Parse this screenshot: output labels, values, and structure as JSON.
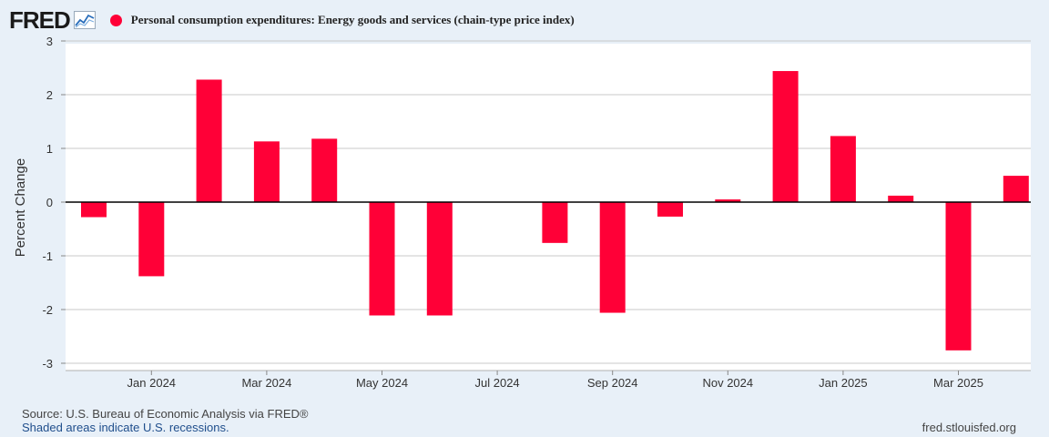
{
  "header": {
    "logo_text": "FRED",
    "logo_icon": "trend-line-icon",
    "legend_label": "Personal consumption expenditures: Energy goods and services (chain-type price index)"
  },
  "footer": {
    "source": "Source: U.S. Bureau of Economic Analysis via FRED®",
    "recession_note": "Shaded areas indicate U.S. recessions.",
    "site": "fred.stlouisfed.org"
  },
  "colors": {
    "series": "#ff0037",
    "plot_bg": "#ffffff",
    "page_bg": "#e8f0f8",
    "grid": "#c8c8c8"
  },
  "chart_data": {
    "type": "bar",
    "ylabel": "Percent Change",
    "ylim": [
      -3,
      3
    ],
    "yticks": [
      3,
      2,
      1,
      0,
      -1,
      -2,
      -3
    ],
    "grid": true,
    "x": [
      "2023-12",
      "2024-01",
      "2024-02",
      "2024-03",
      "2024-04",
      "2024-05",
      "2024-06",
      "2024-07",
      "2024-08",
      "2024-09",
      "2024-10",
      "2024-11",
      "2024-12",
      "2025-01",
      "2025-02",
      "2025-03",
      "2025-04"
    ],
    "x_tick_labels": [
      {
        "x": "2024-01",
        "label": "Jan 2024"
      },
      {
        "x": "2024-03",
        "label": "Mar 2024"
      },
      {
        "x": "2024-05",
        "label": "May 2024"
      },
      {
        "x": "2024-07",
        "label": "Jul 2024"
      },
      {
        "x": "2024-09",
        "label": "Sep 2024"
      },
      {
        "x": "2024-11",
        "label": "Nov 2024"
      },
      {
        "x": "2025-01",
        "label": "Jan 2025"
      },
      {
        "x": "2025-03",
        "label": "Mar 2025"
      }
    ],
    "series": [
      {
        "values": [
          -0.28,
          -1.38,
          2.28,
          1.13,
          1.18,
          -2.11,
          -2.11,
          0.0,
          -0.76,
          -2.06,
          -0.27,
          0.05,
          2.44,
          1.23,
          0.12,
          -2.76,
          0.49
        ]
      }
    ]
  }
}
